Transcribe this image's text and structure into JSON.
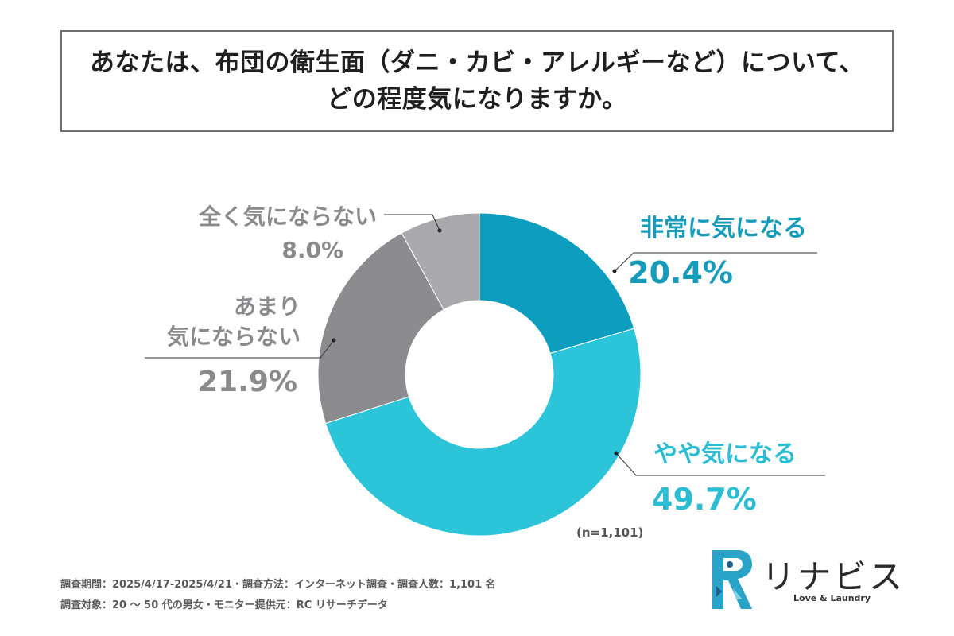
{
  "title": {
    "line1": "あなたは、布団の衛生面（ダニ・カビ・アレルギーなど）について、",
    "line2": "どの程度気になりますか。"
  },
  "chart_data": {
    "type": "pie",
    "variant": "donut",
    "slices": [
      {
        "label": "非常に気になる",
        "value": 20.4,
        "display": "20.4%",
        "color": "#0d9ebf"
      },
      {
        "label": "やや気になる",
        "value": 49.7,
        "display": "49.7%",
        "color": "#2cc4d8"
      },
      {
        "label": "あまり\n気にならない",
        "label_lines": [
          "あまり",
          "気にならない"
        ],
        "value": 21.9,
        "display": "21.9%",
        "color": "#8c8b8d"
      },
      {
        "label": "全く気にならない",
        "value": 8.0,
        "display": "8.0%",
        "color": "#a9a8aa"
      }
    ],
    "sample_size": "(n=1,101)"
  },
  "footer": {
    "line1": "調査期間：2025/4/17-2025/4/21・調査方法：インターネット調査・調査人数：1,101 名",
    "line2": "調査対象：20 〜 50 代の男女・モニター提供元：RC リサーチデータ"
  },
  "logo": {
    "name": "リナビス",
    "tagline": "Love & Laundry"
  }
}
